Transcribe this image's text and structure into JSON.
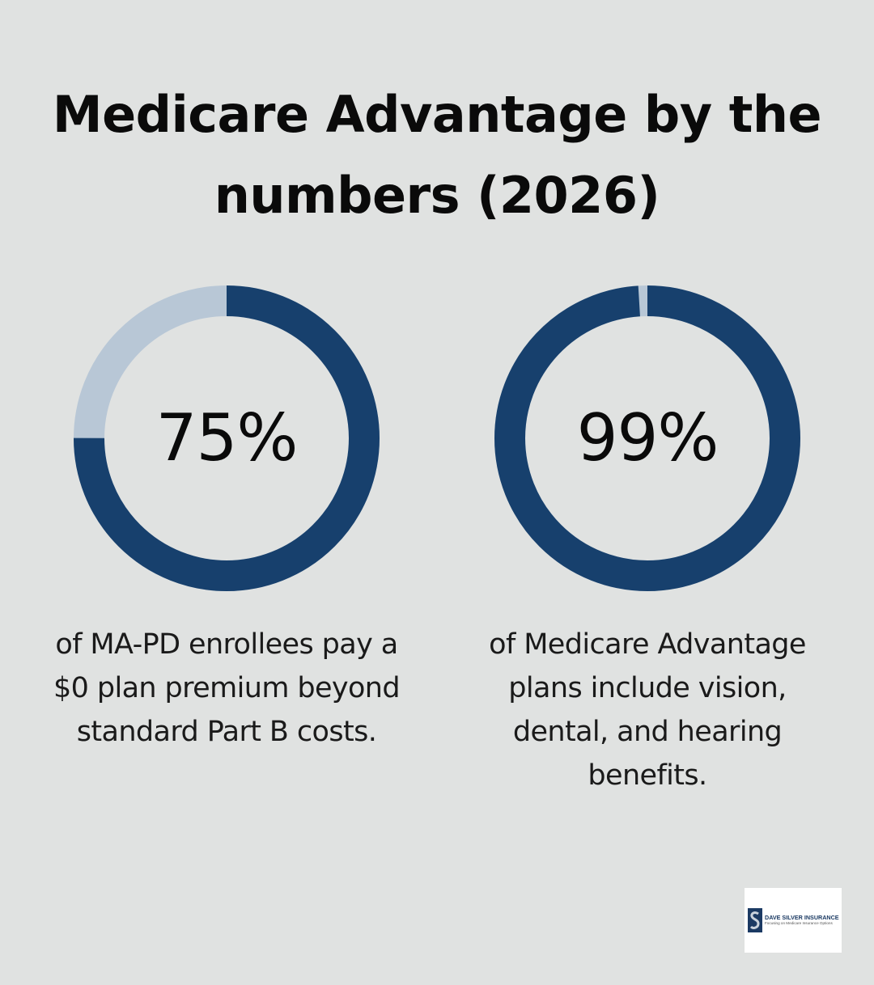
{
  "title": "Medicare Advantage by the numbers (2026)",
  "colors": {
    "background": "#e0e2e1",
    "ring_filled": "#17406d",
    "ring_remainder": "#b8c7d6"
  },
  "chart_data": [
    {
      "type": "pie",
      "value": 75,
      "display_value": "75%",
      "description": "of MA-PD enrollees pay a $0 plan premium beyond standard Part B costs."
    },
    {
      "type": "pie",
      "value": 99,
      "display_value": "99%",
      "description": "of Medicare Advantage plans include vision, dental, and hearing benefits."
    }
  ],
  "logo": {
    "name": "DAVE SILVER INSURANCE",
    "tagline": "Focusing on Medicare Insurance Options"
  }
}
